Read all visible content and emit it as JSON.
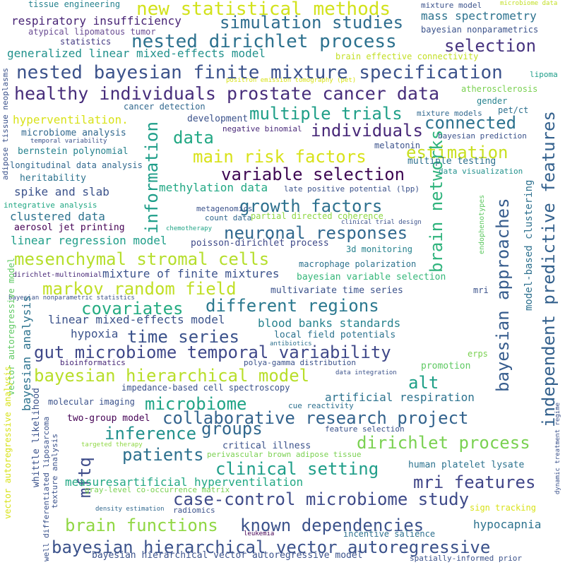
{
  "words": [
    {
      "text": "new statistical methods",
      "color": "#d2e21b"
    },
    {
      "text": "nested dirichlet process",
      "color": "#2c718e"
    },
    {
      "text": "simulation studies",
      "color": "#2e6d8e"
    },
    {
      "text": "selection",
      "color": "#46337f"
    },
    {
      "text": "nested bayesian finite mixture specification",
      "color": "#3b528b"
    },
    {
      "text": "healthy individuals prostate cancer data",
      "color": "#472d7b"
    },
    {
      "text": "multiple trials",
      "color": "#1f9f88"
    },
    {
      "text": "connected",
      "color": "#2c728e"
    },
    {
      "text": "individuals",
      "color": "#482878"
    },
    {
      "text": "data",
      "color": "#22a884"
    },
    {
      "text": "estimation",
      "color": "#c8e020"
    },
    {
      "text": "main risk factors",
      "color": "#d8e219"
    },
    {
      "text": "variable selection",
      "color": "#3e0853"
    },
    {
      "text": "growth factors",
      "color": "#2d708e"
    },
    {
      "text": "neuronal responses",
      "color": "#31688e"
    },
    {
      "text": "mesenchymal stromal cells",
      "color": "#b5de2b"
    },
    {
      "text": "markov random field",
      "color": "#c0df25"
    },
    {
      "text": "covariates",
      "color": "#25ac82"
    },
    {
      "text": "different regions",
      "color": "#2a788e"
    },
    {
      "text": "time series",
      "color": "#3b528b"
    },
    {
      "text": "gut microbiome temporal variability",
      "color": "#3f4889"
    },
    {
      "text": "bayesian hierarchical model",
      "color": "#b8de29"
    },
    {
      "text": "alt",
      "color": "#1fa088"
    },
    {
      "text": "microbiome",
      "color": "#20a486"
    },
    {
      "text": "collaborative research project",
      "color": "#33638d"
    },
    {
      "text": "groups",
      "color": "#31688e"
    },
    {
      "text": "inference",
      "color": "#21918c"
    },
    {
      "text": "dirichlet process",
      "color": "#7ad151"
    },
    {
      "text": "patients",
      "color": "#2d708e"
    },
    {
      "text": "clinical setting",
      "color": "#1f9e89"
    },
    {
      "text": "mri features",
      "color": "#404588"
    },
    {
      "text": "case-control microbiome study",
      "color": "#3e4a89"
    },
    {
      "text": "brain functions",
      "color": "#90d743"
    },
    {
      "text": "known dependencies",
      "color": "#3b528b"
    },
    {
      "text": "bayesian hierarchical vector autoregressive",
      "color": "#3b528b"
    },
    {
      "text": "information",
      "color": "#1f9e89"
    },
    {
      "text": "bayesian approaches",
      "color": "#365c8d"
    },
    {
      "text": "brain networks",
      "color": "#2eb37c"
    },
    {
      "text": "independent predictive features",
      "color": "#34618d"
    },
    {
      "text": "mftq",
      "color": "#3e4c8a"
    },
    {
      "text": "respiratory insufficiency",
      "color": "#482475"
    },
    {
      "text": "generalized linear mixed-effects model",
      "color": "#21918c"
    },
    {
      "text": "atypical lipomatous tumor",
      "color": "#6a4c93"
    },
    {
      "text": "statistics",
      "color": "#443a83"
    },
    {
      "text": "tissue engineering",
      "color": "#26828e"
    },
    {
      "text": "mixture model",
      "color": "#3b528b"
    },
    {
      "text": "microbiome data",
      "color": "#c2df23"
    },
    {
      "text": "mass spectrometry",
      "color": "#2c728e"
    },
    {
      "text": "bayesian nonparametrics",
      "color": "#3b528b"
    },
    {
      "text": "brain effective connectivity",
      "color": "#c2df23"
    },
    {
      "text": "positron emission tomography (pet)",
      "color": "#d8e219"
    },
    {
      "text": "lipoma",
      "color": "#1f9e89"
    },
    {
      "text": "atherosclerosis",
      "color": "#7ad151"
    },
    {
      "text": "cancer detection",
      "color": "#31688e"
    },
    {
      "text": "gender",
      "color": "#26828e"
    },
    {
      "text": "pet/ct",
      "color": "#2d708e"
    },
    {
      "text": "mixture models",
      "color": "#31688e"
    },
    {
      "text": "bayesian prediction",
      "color": "#3b528b"
    },
    {
      "text": "hyperventilation.",
      "color": "#d8e219"
    },
    {
      "text": "development",
      "color": "#3b528b"
    },
    {
      "text": "negative binomial",
      "color": "#482878"
    },
    {
      "text": "microbiome analysis",
      "color": "#31688e"
    },
    {
      "text": "temporal variability",
      "color": "#3b528b"
    },
    {
      "text": "bernstein polynomial",
      "color": "#26828e"
    },
    {
      "text": "longitudinal data analysis",
      "color": "#31688e"
    },
    {
      "text": "melatonin",
      "color": "#3b528b"
    },
    {
      "text": "multiple testing",
      "color": "#2d708e"
    },
    {
      "text": "data visualization",
      "color": "#21918c"
    },
    {
      "text": "heritability",
      "color": "#2c728e"
    },
    {
      "text": "spike and slab",
      "color": "#3b528b"
    },
    {
      "text": "integrative analysis",
      "color": "#22a884"
    },
    {
      "text": "methylation data",
      "color": "#22a884"
    },
    {
      "text": "late positive potential (lpp)",
      "color": "#3b528b"
    },
    {
      "text": "endophenotypes",
      "color": "#5ec962"
    },
    {
      "text": "clustered data",
      "color": "#2c728e"
    },
    {
      "text": "metagenomics",
      "color": "#3b528b"
    },
    {
      "text": "count data",
      "color": "#31688e"
    },
    {
      "text": "partial directed coherence",
      "color": "#8fd744"
    },
    {
      "text": "clinical trial design",
      "color": "#3b528b"
    },
    {
      "text": "aerosol jet printing",
      "color": "#440154"
    },
    {
      "text": "chemotherapy",
      "color": "#20a486"
    },
    {
      "text": "linear regression model",
      "color": "#1f9e89"
    },
    {
      "text": "poisson-dirichlet process",
      "color": "#3e4989"
    },
    {
      "text": "3d monitoring",
      "color": "#26828e"
    },
    {
      "text": "model-based clustering",
      "color": "#2d708e"
    },
    {
      "text": "dirichlet-multinomial",
      "color": "#482878"
    },
    {
      "text": "macrophage polarization",
      "color": "#2c728e"
    },
    {
      "text": "mixture of finite mixtures",
      "color": "#3b528b"
    },
    {
      "text": "bayesian variable selection",
      "color": "#35b779"
    },
    {
      "text": "mri",
      "color": "#3b528b"
    },
    {
      "text": "bayesian nonparametric statistics",
      "color": "#3b528b"
    },
    {
      "text": "multivariate time series",
      "color": "#3b528b"
    },
    {
      "text": "linear mixed-effects model",
      "color": "#3b528b"
    },
    {
      "text": "blood banks standards",
      "color": "#26828e"
    },
    {
      "text": "vector autoregressive model",
      "color": "#5ec962"
    },
    {
      "text": "hypoxia",
      "color": "#3b528b"
    },
    {
      "text": "local field potentials",
      "color": "#2c728e"
    },
    {
      "text": "antibiotics",
      "color": "#2d708e"
    },
    {
      "text": "bioinformatics",
      "color": "#482878"
    },
    {
      "text": "polya-gamma distribution",
      "color": "#3b528b"
    },
    {
      "text": "erps",
      "color": "#7ad151"
    },
    {
      "text": "bayesian analysis",
      "color": "#2c728e"
    },
    {
      "text": "promotion",
      "color": "#5ec962"
    },
    {
      "text": "data integration",
      "color": "#3b528b"
    },
    {
      "text": "impedance-based cell spectroscopy",
      "color": "#3b528b"
    },
    {
      "text": "artificial respiration",
      "color": "#2c728e"
    },
    {
      "text": "molecular imaging",
      "color": "#3b528b"
    },
    {
      "text": "whittle likelihood",
      "color": "#3b528b"
    },
    {
      "text": "cue reactivity",
      "color": "#2d708e"
    },
    {
      "text": "well differentiated liposarcoma",
      "color": "#3b528b"
    },
    {
      "text": "two-group model",
      "color": "#440154"
    },
    {
      "text": "feature selection",
      "color": "#3b528b"
    },
    {
      "text": "targeted therapy",
      "color": "#8fd744"
    },
    {
      "text": "vector autoregressive analysis",
      "color": "#d8e219"
    },
    {
      "text": "critical illness",
      "color": "#3b528b"
    },
    {
      "text": "perivascular brown adipose tissue",
      "color": "#7ad151"
    },
    {
      "text": "human platelet lysate",
      "color": "#2c728e"
    },
    {
      "text": "dynamic treatment regime",
      "color": "#3b528b"
    },
    {
      "text": "measuresartificial hyperventilation",
      "color": "#22a884"
    },
    {
      "text": "gray-level co-occurrence matrix",
      "color": "#7ad151"
    },
    {
      "text": "texture analysis",
      "color": "#3b528b"
    },
    {
      "text": "density estimation",
      "color": "#31688e"
    },
    {
      "text": "radiomics",
      "color": "#3b528b"
    },
    {
      "text": "sign tracking",
      "color": "#d8e219"
    },
    {
      "text": "hypocapnia",
      "color": "#2c728e"
    },
    {
      "text": "leukemia",
      "color": "#440154"
    },
    {
      "text": "incentive salience",
      "color": "#2d708e"
    },
    {
      "text": "bayesian hierarchical vector autoregressive model",
      "color": "#3b528b"
    },
    {
      "text": "spatially-informed prior",
      "color": "#3b528b"
    },
    {
      "text": "adipose tissue neoplasms",
      "color": "#3b528b"
    }
  ]
}
